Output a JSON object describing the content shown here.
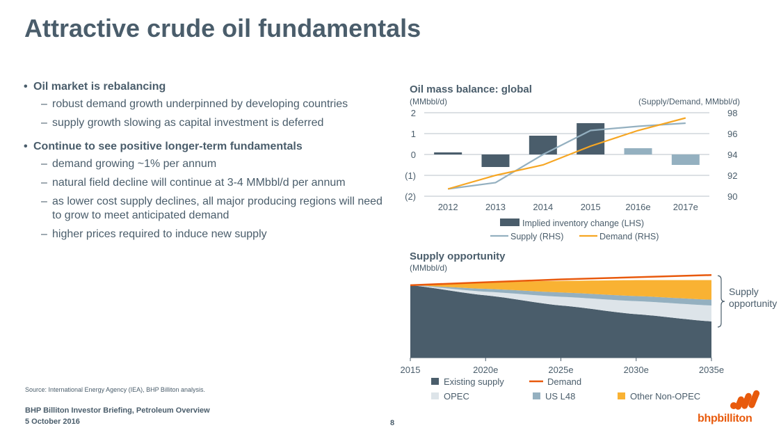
{
  "page": {
    "title": "Attractive crude oil fundamentals",
    "bullets": [
      {
        "text": "Oil market is rebalancing",
        "subs": [
          "robust demand growth underpinned by developing countries",
          "supply growth slowing as capital investment is deferred"
        ]
      },
      {
        "text": "Continue to see positive longer-term fundamentals",
        "subs": [
          "demand growing ~1% per annum",
          "natural field decline will continue at 3-4 MMbbl/d per annum",
          "as lower cost supply declines, all major producing regions will need to grow to meet anticipated demand",
          "higher prices required to induce new supply"
        ]
      }
    ],
    "source": "Source:   International Energy Agency (IEA), BHP Billiton analysis.",
    "footer_line1": "BHP Billiton Investor Briefing, Petroleum Overview",
    "footer_line2": "5 October 2016",
    "page_number": "8",
    "logo_text": "bhpbilliton",
    "bullet_symbol": "•",
    "dash_symbol": "–"
  },
  "chart_data": [
    {
      "type": "bar",
      "title": "Oil mass balance: global",
      "ylabel_left": "(MMbbl/d)",
      "ylabel_right": "(Supply/Demand, MMbbl/d)",
      "categories": [
        "2012",
        "2013",
        "2014",
        "2015",
        "2016e",
        "2017e"
      ],
      "left_ticks": [
        "2",
        "1",
        "0",
        "(1)",
        "(2)"
      ],
      "right_ticks": [
        "98",
        "96",
        "94",
        "92",
        "90"
      ],
      "ylim_left": [
        -2,
        2
      ],
      "ylim_right": [
        90,
        98
      ],
      "grid": true,
      "series": [
        {
          "name": "Implied inventory change (LHS)",
          "kind": "bar",
          "axis": "left",
          "values": [
            0.1,
            -0.6,
            0.9,
            1.5,
            0.3,
            -0.5
          ],
          "colors": [
            "#4a5d6b",
            "#4a5d6b",
            "#4a5d6b",
            "#4a5d6b",
            "#94b0c0",
            "#94b0c0"
          ]
        },
        {
          "name": "Supply (RHS)",
          "kind": "line",
          "axis": "right",
          "color": "#94b0c0",
          "values": [
            90.7,
            91.3,
            94.0,
            96.3,
            96.7,
            97.0
          ]
        },
        {
          "name": "Demand (RHS)",
          "kind": "line",
          "axis": "right",
          "color": "#f6a623",
          "values": [
            90.7,
            92.0,
            93.0,
            94.8,
            96.3,
            97.5
          ]
        }
      ],
      "legend_placement": "bottom"
    },
    {
      "type": "area",
      "title": "Supply opportunity",
      "ylabel": "(MMbbl/d)",
      "categories": [
        "2015",
        "2020e",
        "2025e",
        "2030e",
        "2035e"
      ],
      "x": [
        2015,
        2020,
        2025,
        2030,
        2035
      ],
      "series": [
        {
          "name": "Existing supply",
          "color": "#4a5d6b",
          "values": [
            100,
            86,
            72,
            60,
            50
          ]
        },
        {
          "name": "OPEC",
          "color": "#dde4e9",
          "values": [
            0,
            5,
            12,
            18,
            22
          ]
        },
        {
          "name": "US L48",
          "color": "#94b0c0",
          "values": [
            0,
            4,
            6,
            7,
            8
          ]
        },
        {
          "name": "Other Non-OPEC",
          "color": "#f9b233",
          "values": [
            0,
            9,
            16,
            22,
            27
          ]
        },
        {
          "name": "Demand",
          "kind": "line",
          "color": "#e8590c",
          "values": [
            100,
            104,
            108,
            111,
            114
          ]
        }
      ],
      "annotation": "Supply opportunity",
      "legend_placement": "bottom"
    }
  ]
}
